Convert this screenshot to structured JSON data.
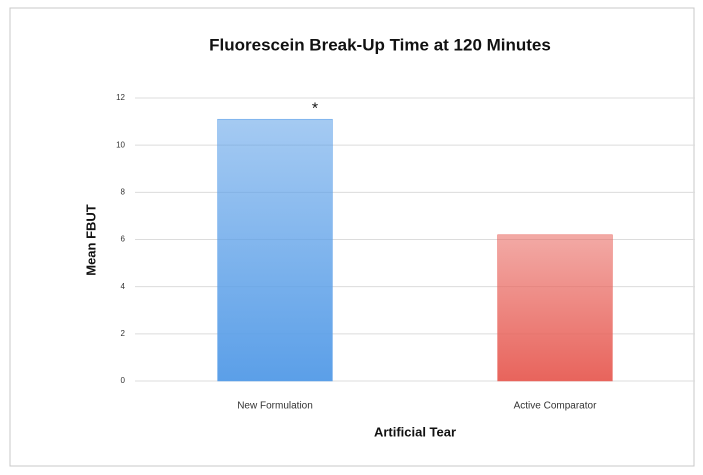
{
  "chart_data": {
    "type": "bar",
    "title": "Fluorescein Break-Up Time at 120 Minutes",
    "xlabel": "Artificial Tear",
    "ylabel": "Mean FBUT",
    "categories": [
      "New Formulation",
      "Active Comparator"
    ],
    "values": [
      11.1,
      6.2
    ],
    "colors": [
      "#5b9fe8",
      "#e8645c"
    ],
    "annotation": "*",
    "ylim": [
      0,
      12
    ],
    "yticks": [
      0,
      2,
      4,
      6,
      8,
      10,
      12
    ],
    "grid": true
  }
}
